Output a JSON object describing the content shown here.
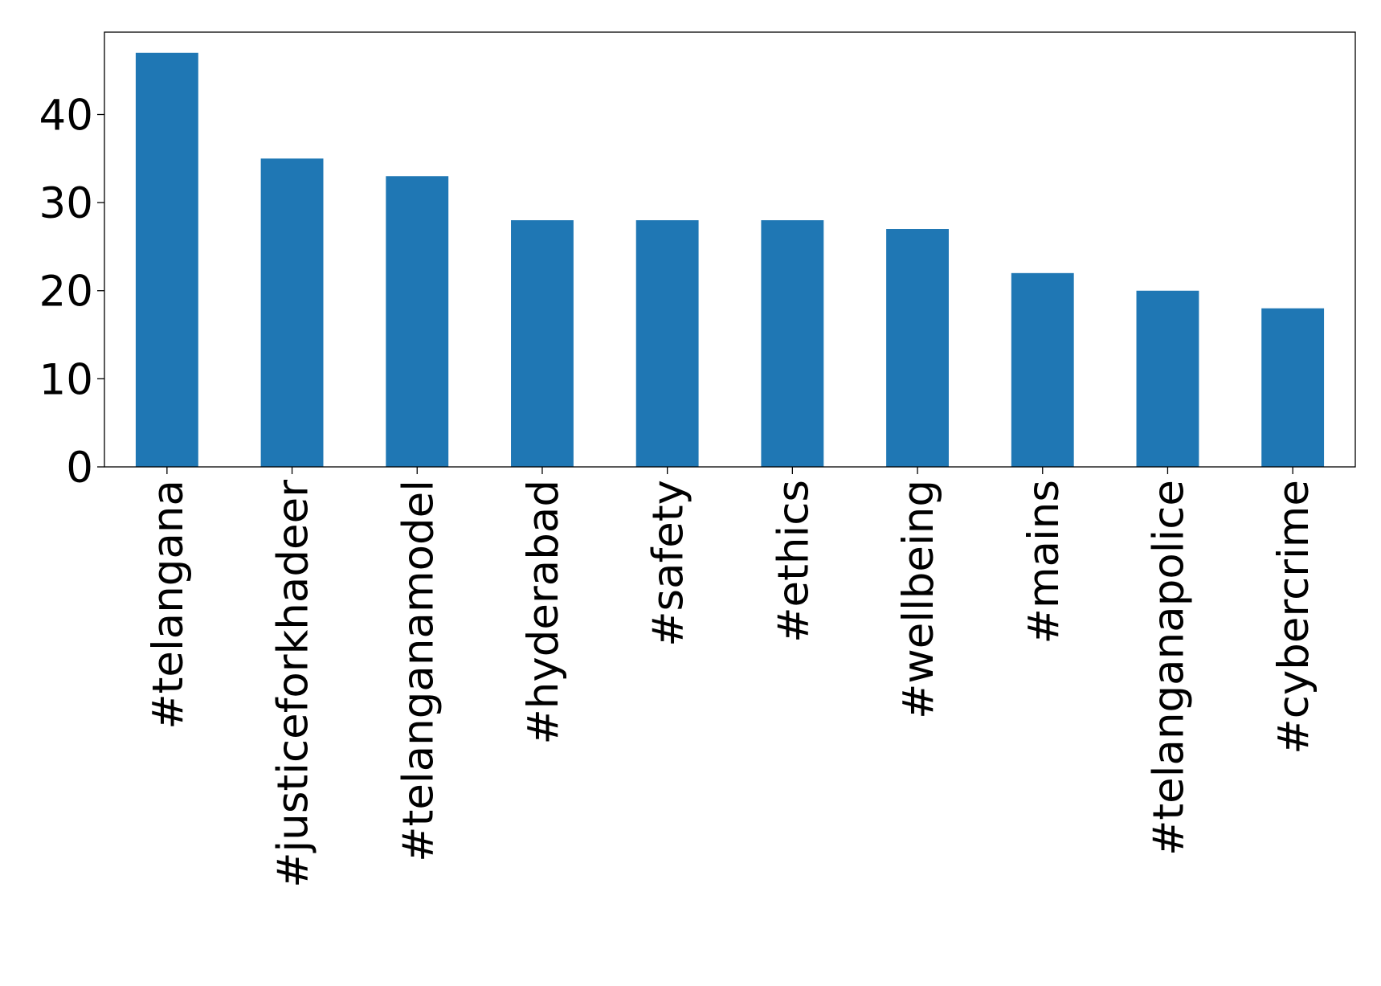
{
  "chart_data": {
    "type": "bar",
    "categories": [
      "#telangana",
      "#justiceforkhadeer",
      "#telanganamodel",
      "#hyderabad",
      "#safety",
      "#ethics",
      "#wellbeing",
      "#mains",
      "#telanganapolice",
      "#cybercrime"
    ],
    "values": [
      47,
      35,
      33,
      28,
      28,
      28,
      27,
      22,
      20,
      18
    ],
    "color": "#1f77b4",
    "ylim": [
      0,
      49.35
    ],
    "yticks": [
      0,
      10,
      20,
      30,
      40
    ],
    "grid": false
  }
}
